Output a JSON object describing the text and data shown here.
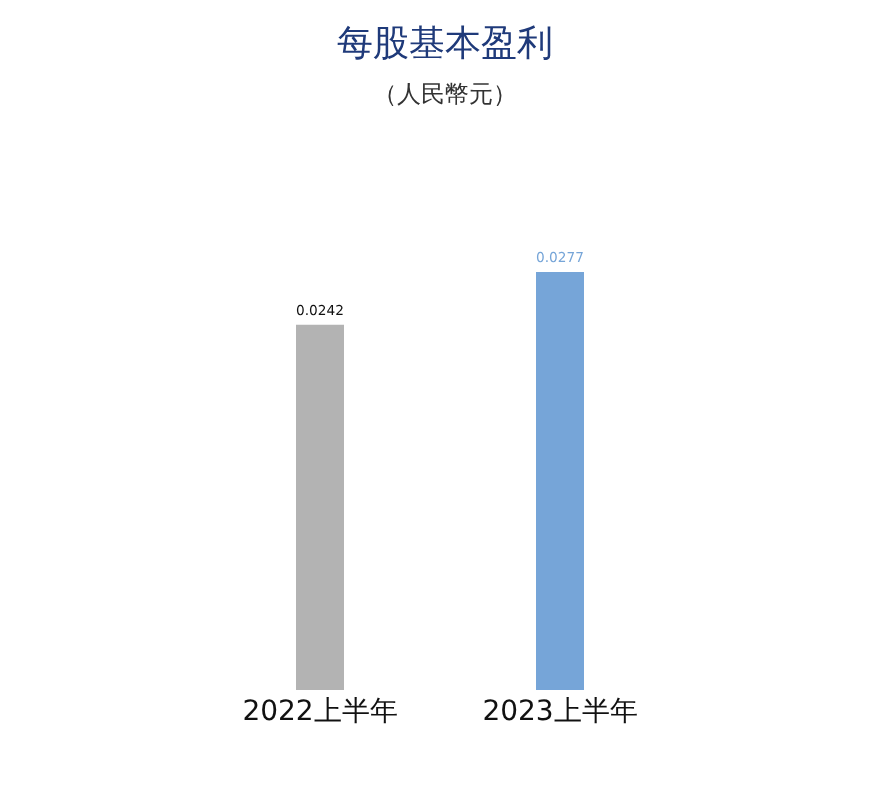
{
  "chart_data": {
    "type": "bar",
    "title": "每股基本盈利",
    "subtitle": "（人民幣元）",
    "categories": [
      "2022上半年",
      "2023上半年"
    ],
    "values": [
      0.0242,
      0.0277
    ],
    "colors": [
      "#b3b3b3",
      "#76a5d8"
    ],
    "data_labels": true,
    "legend": false
  }
}
